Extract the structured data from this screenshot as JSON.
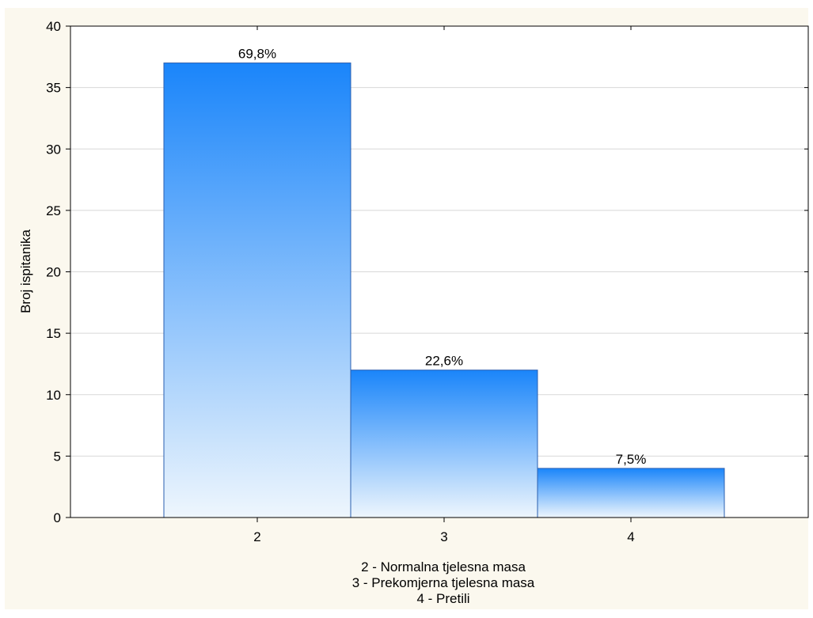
{
  "chart_data": {
    "type": "bar",
    "categories": [
      "2",
      "3",
      "4"
    ],
    "values": [
      37,
      12,
      4
    ],
    "data_labels": [
      "69,8%",
      "22,6%",
      "7,5%"
    ],
    "title": "",
    "xlabel": "",
    "ylabel": "Broj ispitanika",
    "ylim": [
      0,
      40
    ],
    "yticks": [
      0,
      5,
      10,
      15,
      20,
      25,
      30,
      35,
      40
    ],
    "ytick_labels": [
      "0",
      "5",
      "10",
      "15",
      "20",
      "25",
      "30",
      "35",
      "40"
    ],
    "grid": true,
    "legend_lines": [
      "2 - Normalna tjelesna masa",
      "3 - Prekomjerna tjelesna masa",
      "4 - Pretili"
    ],
    "colors": {
      "outer_background": "#fbf8ee",
      "plot_background": "#ffffff",
      "bar_top": "#1a85fa",
      "bar_bottom": "#eef6fd",
      "bar_border": "#2a5fb0",
      "grid": "#d8d8d8",
      "axis": "#000000"
    }
  }
}
